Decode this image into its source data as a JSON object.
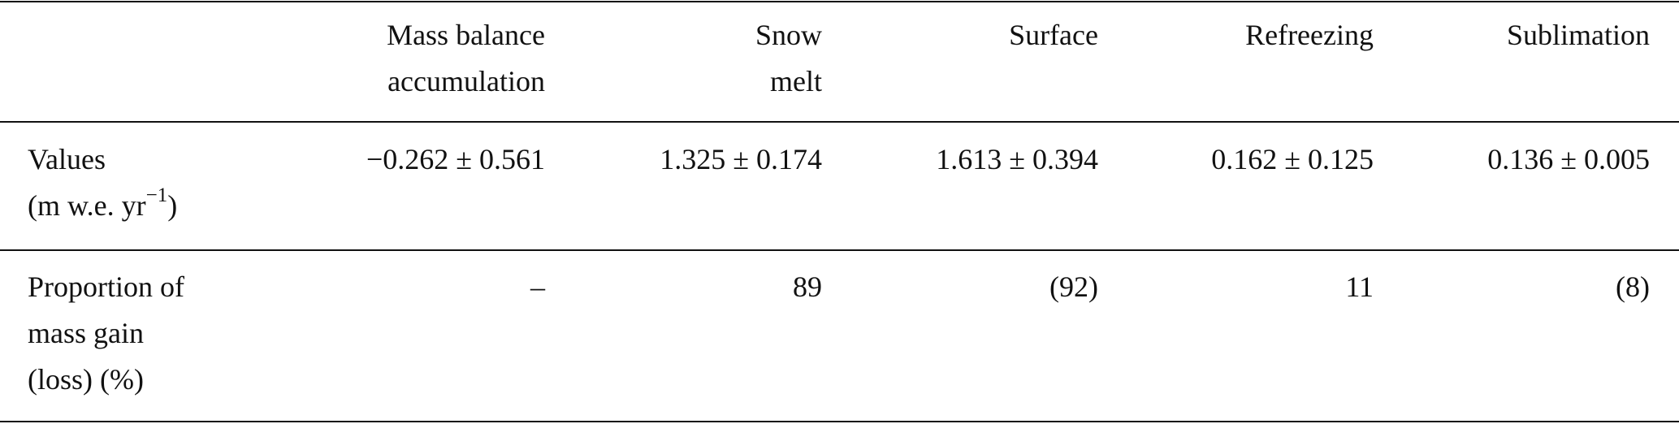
{
  "table": {
    "header": [
      [
        "Mass balance",
        "accumulation"
      ],
      [
        "Snow",
        "melt"
      ],
      [
        "Surface"
      ],
      [
        "Refreezing"
      ],
      [
        "Sublimation"
      ]
    ],
    "rows": [
      {
        "label": [
          "Values",
          "(m w.e. yr"
        ],
        "label_superscript": "−1",
        "label_suffix": ")",
        "cells": [
          "−0.262 ± 0.561",
          "1.325 ± 0.174",
          "1.613 ± 0.394",
          "0.162 ± 0.125",
          "0.136 ± 0.005"
        ]
      },
      {
        "label": [
          "Proportion of",
          "mass gain",
          "(loss) (%)"
        ],
        "cells": [
          "–",
          "89",
          "(92)",
          "11",
          "(8)"
        ]
      }
    ]
  }
}
